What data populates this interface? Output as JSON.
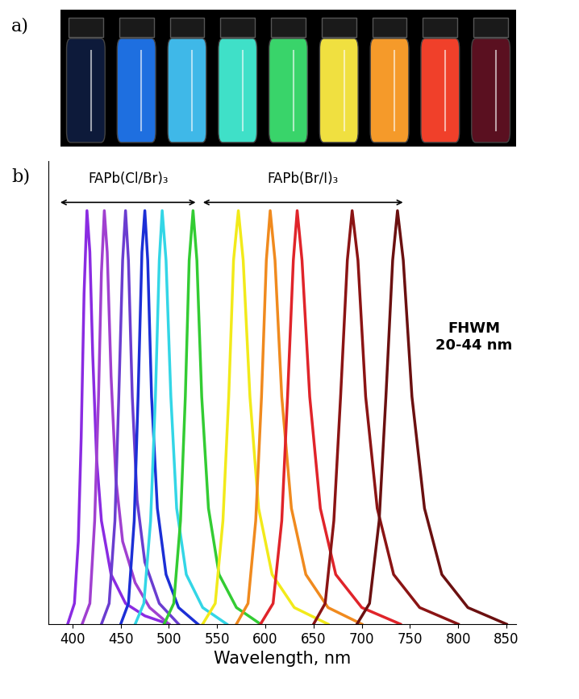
{
  "photo": {
    "label": "a)",
    "vial_colors": [
      "#0d1a3a",
      "#1e6fe0",
      "#3fb8e8",
      "#3fe0c8",
      "#39d46a",
      "#f0e040",
      "#f59a2a",
      "#f0402a",
      "#5a1020"
    ]
  },
  "chart_data": {
    "type": "line",
    "panel_label": "b)",
    "x_label": "Wavelength, nm",
    "xlim": [
      375,
      860
    ],
    "xticks": [
      400,
      450,
      500,
      550,
      600,
      650,
      700,
      750,
      800,
      850
    ],
    "ylim": [
      0,
      1.12
    ],
    "tick_labels": "x",
    "grid": false,
    "annotations": [
      {
        "text": "FAPb(Cl/Br)₃",
        "x_range": [
          385,
          530
        ]
      },
      {
        "text": "FAPb(Br/I)₃",
        "x_range": [
          533,
          745
        ]
      },
      {
        "text": "FHWM\n20-44 nm"
      }
    ],
    "series": [
      {
        "color": "#8a2be2",
        "x": [
          395,
          402,
          406,
          409,
          412,
          415,
          418,
          421,
          425,
          430,
          440,
          455,
          475,
          500
        ],
        "values": [
          0,
          0.05,
          0.2,
          0.45,
          0.8,
          1.0,
          0.9,
          0.65,
          0.4,
          0.25,
          0.12,
          0.05,
          0.02,
          0
        ]
      },
      {
        "color": "#a040d0",
        "x": [
          410,
          418,
          423,
          427,
          430,
          433,
          436,
          440,
          445,
          452,
          465,
          480,
          500
        ],
        "values": [
          0,
          0.05,
          0.25,
          0.55,
          0.85,
          1.0,
          0.9,
          0.6,
          0.35,
          0.2,
          0.1,
          0.04,
          0
        ]
      },
      {
        "color": "#6a3dd0",
        "x": [
          430,
          438,
          444,
          448,
          452,
          455,
          458,
          462,
          467,
          475,
          490,
          510
        ],
        "values": [
          0,
          0.05,
          0.25,
          0.55,
          0.88,
          1.0,
          0.88,
          0.55,
          0.3,
          0.15,
          0.05,
          0
        ]
      },
      {
        "color": "#1c2fd6",
        "x": [
          450,
          458,
          464,
          468,
          472,
          475,
          478,
          482,
          488,
          497,
          510,
          530
        ],
        "values": [
          0,
          0.05,
          0.25,
          0.55,
          0.9,
          1.0,
          0.88,
          0.55,
          0.28,
          0.12,
          0.04,
          0
        ]
      },
      {
        "color": "#33d6e6",
        "x": [
          465,
          474,
          481,
          486,
          490,
          493,
          497,
          502,
          508,
          518,
          535,
          560
        ],
        "values": [
          0,
          0.05,
          0.25,
          0.55,
          0.88,
          1.0,
          0.88,
          0.55,
          0.28,
          0.12,
          0.04,
          0
        ]
      },
      {
        "color": "#33cc33",
        "x": [
          495,
          505,
          512,
          517,
          521,
          525,
          529,
          534,
          541,
          552,
          570,
          595
        ],
        "values": [
          0,
          0.05,
          0.25,
          0.55,
          0.88,
          1.0,
          0.88,
          0.55,
          0.28,
          0.12,
          0.04,
          0
        ]
      },
      {
        "color": "#f2ea1a",
        "x": [
          535,
          548,
          556,
          562,
          567,
          572,
          577,
          584,
          593,
          607,
          630,
          665
        ],
        "values": [
          0,
          0.05,
          0.25,
          0.55,
          0.88,
          1.0,
          0.88,
          0.55,
          0.28,
          0.12,
          0.04,
          0
        ]
      },
      {
        "color": "#f08a1e",
        "x": [
          570,
          582,
          590,
          596,
          601,
          605,
          610,
          617,
          627,
          642,
          665,
          700
        ],
        "values": [
          0,
          0.05,
          0.25,
          0.55,
          0.88,
          1.0,
          0.88,
          0.55,
          0.28,
          0.12,
          0.04,
          0
        ]
      },
      {
        "color": "#e0242a",
        "x": [
          595,
          608,
          617,
          623,
          629,
          633,
          638,
          646,
          657,
          673,
          700,
          740
        ],
        "values": [
          0,
          0.05,
          0.25,
          0.55,
          0.88,
          1.0,
          0.88,
          0.55,
          0.28,
          0.12,
          0.04,
          0
        ]
      },
      {
        "color": "#8b1414",
        "x": [
          650,
          662,
          671,
          678,
          685,
          690,
          696,
          704,
          716,
          733,
          760,
          800
        ],
        "values": [
          0,
          0.05,
          0.25,
          0.55,
          0.88,
          1.0,
          0.88,
          0.55,
          0.28,
          0.12,
          0.04,
          0
        ]
      },
      {
        "color": "#6b1010",
        "x": [
          695,
          708,
          718,
          725,
          732,
          737,
          743,
          752,
          765,
          783,
          810,
          850
        ],
        "values": [
          0,
          0.05,
          0.25,
          0.55,
          0.88,
          1.0,
          0.88,
          0.55,
          0.28,
          0.12,
          0.04,
          0
        ]
      }
    ]
  }
}
